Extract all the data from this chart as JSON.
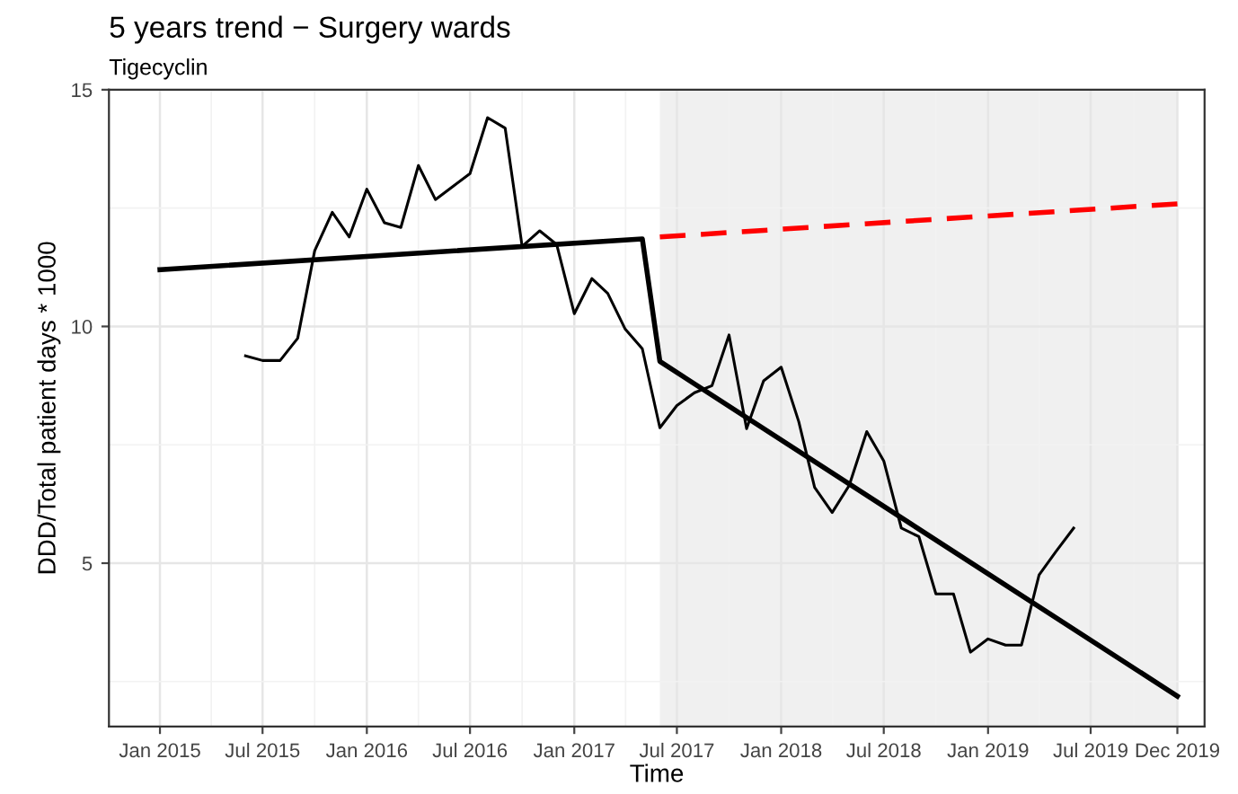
{
  "chart_data": {
    "type": "line",
    "title": "5 years trend − Surgery wards",
    "subtitle": "Tigecyclin",
    "xlabel": "Time",
    "ylabel": "DDD/Total patient days * 1000",
    "x": [
      "2015-06-01",
      "2015-07-01",
      "2015-08-01",
      "2015-09-01",
      "2015-10-01",
      "2015-11-01",
      "2015-12-01",
      "2016-01-01",
      "2016-02-01",
      "2016-03-01",
      "2016-04-01",
      "2016-05-01",
      "2016-06-01",
      "2016-07-01",
      "2016-08-01",
      "2016-09-01",
      "2016-10-01",
      "2016-11-01",
      "2016-12-01",
      "2017-01-01",
      "2017-02-01",
      "2017-03-01",
      "2017-04-01",
      "2017-05-01",
      "2017-06-01",
      "2017-07-01",
      "2017-08-01",
      "2017-09-01",
      "2017-10-01",
      "2017-11-01",
      "2017-12-01",
      "2018-01-01",
      "2018-02-01",
      "2018-03-01",
      "2018-04-01",
      "2018-05-01",
      "2018-06-01",
      "2018-07-01",
      "2018-08-01",
      "2018-09-01",
      "2018-10-01",
      "2018-11-01",
      "2018-12-01",
      "2019-01-01",
      "2019-02-01",
      "2019-03-01",
      "2019-04-01",
      "2019-05-01",
      "2019-06-01"
    ],
    "series": [
      {
        "color": "#000000",
        "values": [
          9.38,
          9.28,
          9.28,
          9.75,
          11.6,
          12.41,
          11.89,
          12.9,
          12.19,
          12.09,
          13.4,
          12.68,
          12.96,
          13.23,
          14.41,
          14.19,
          11.69,
          12.02,
          11.73,
          10.27,
          11.01,
          10.7,
          9.94,
          9.53,
          7.86,
          8.33,
          8.6,
          8.75,
          9.82,
          7.84,
          8.85,
          9.14,
          7.99,
          6.6,
          6.07,
          6.64,
          7.78,
          7.16,
          5.74,
          5.56,
          4.35,
          4.35,
          3.12,
          3.4,
          3.27,
          3.27,
          4.75,
          5.25,
          5.74
        ]
      },
      {
        "color": "#000000",
        "x": [
          "2015-01-01",
          "2017-05-01",
          "2017-06-01",
          "2019-12-01"
        ],
        "values": [
          11.2,
          11.85,
          9.26,
          2.19
        ]
      },
      {
        "color": "#ff0000",
        "line_style": "dashed",
        "x": [
          "2017-06-01",
          "2019-12-01"
        ],
        "values": [
          11.89,
          12.59
        ]
      }
    ],
    "bands": [
      {
        "axis": "x",
        "from": "2017-06-01",
        "to": "2019-12-01",
        "color": "#f0f0f0"
      }
    ],
    "xlim": [
      "2014-10-03",
      "2020-01-18"
    ],
    "xticks": [
      {
        "value": "2015-01-01",
        "label": "Jan 2015"
      },
      {
        "value": "2015-07-01",
        "label": "Jul 2015"
      },
      {
        "value": "2016-01-01",
        "label": "Jan 2016"
      },
      {
        "value": "2016-07-01",
        "label": "Jul 2016"
      },
      {
        "value": "2017-01-01",
        "label": "Jan 2017"
      },
      {
        "value": "2017-07-01",
        "label": "Jul 2017"
      },
      {
        "value": "2018-01-01",
        "label": "Jan 2018"
      },
      {
        "value": "2018-07-01",
        "label": "Jul 2018"
      },
      {
        "value": "2019-01-01",
        "label": "Jan 2019"
      },
      {
        "value": "2019-07-01",
        "label": "Jul 2019"
      },
      {
        "value": "2019-12-01",
        "label": "Dec 2019"
      }
    ],
    "ylim": [
      1.55,
      15
    ],
    "yticks": [
      5,
      10,
      15
    ],
    "grid": true,
    "legend": false
  }
}
